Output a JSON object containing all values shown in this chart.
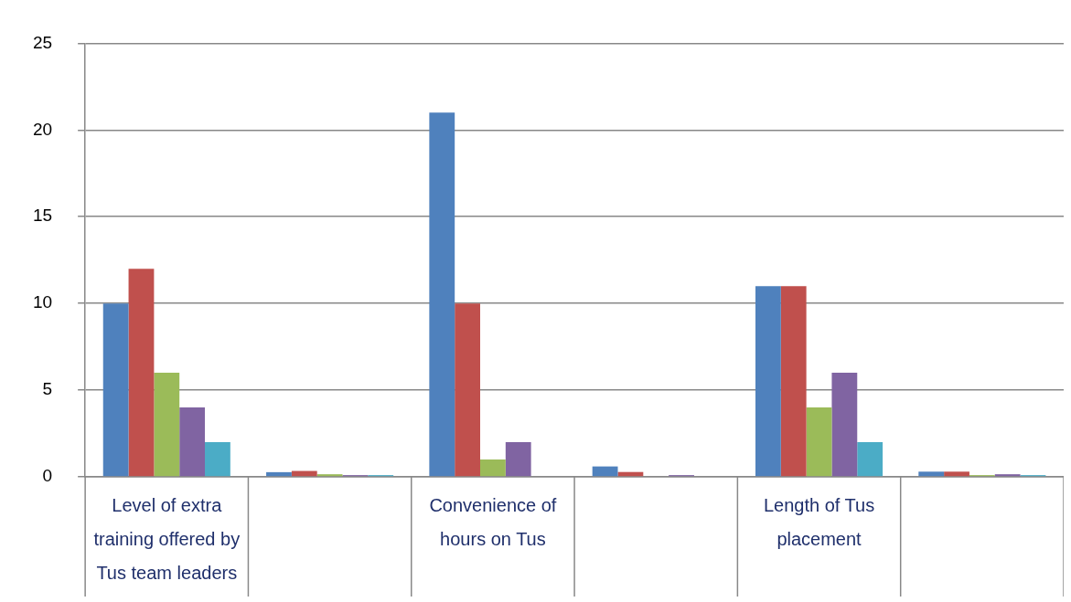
{
  "chart_data": {
    "type": "bar",
    "categories": [
      "Level of extra training offered by Tus team leaders",
      null,
      "Convenience of hours on Tus",
      null,
      "Length of Tus placement",
      null
    ],
    "series": [
      {
        "color": "#4f81bd",
        "values": [
          10,
          0.27,
          21,
          0.6,
          11,
          0.3
        ]
      },
      {
        "color": "#c0504d",
        "values": [
          12,
          0.34,
          10,
          0.28,
          11,
          0.3
        ]
      },
      {
        "color": "#9bbb59",
        "values": [
          6,
          0.15,
          1,
          0,
          4,
          0.1
        ]
      },
      {
        "color": "#8064a2",
        "values": [
          4,
          0.1,
          2,
          0.1,
          6,
          0.15
        ]
      },
      {
        "color": "#4bacc6",
        "values": [
          2,
          0.1,
          null,
          0,
          2,
          0.1
        ]
      }
    ],
    "ylim": [
      0,
      25
    ],
    "yticks": [
      0,
      5,
      10,
      15,
      20,
      25
    ],
    "grid": "y",
    "legend": false
  }
}
